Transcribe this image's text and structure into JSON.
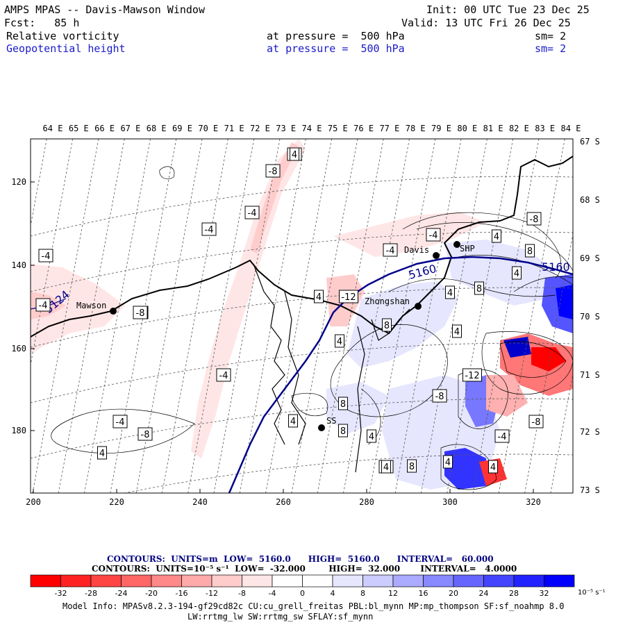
{
  "header": {
    "title": "AMPS MPAS -- Davis-Mawson Window",
    "init": "Init: 00 UTC Tue 23 Dec 25",
    "fcst": "Fcst:   85 h",
    "valid": "Valid: 13 UTC Fri 26 Dec 25",
    "field1": {
      "name": "Relative vorticity",
      "level": "at pressure =  500 hPa",
      "sm": "sm= 2"
    },
    "field2": {
      "name": "Geopotential height",
      "level": "at pressure =  500 hPa",
      "sm": "sm= 2"
    }
  },
  "map": {
    "top_lon_labels": [
      "64 E",
      "65 E",
      "66 E",
      "67 E",
      "68 E",
      "69 E",
      "70 E",
      "71 E",
      "72 E",
      "73 E",
      "74 E",
      "75 E",
      "76 E",
      "77 E",
      "78 E",
      "79 E",
      "80 E",
      "81 E",
      "82 E",
      "83 E",
      "84 E"
    ],
    "right_lat_labels": [
      "67 S",
      "68 S",
      "69 S",
      "70 S",
      "71 S",
      "72 S",
      "73 S"
    ],
    "left_y_ticks": [
      "120",
      "140",
      "160",
      "180"
    ],
    "bottom_x_ticks": [
      "200",
      "220",
      "240",
      "260",
      "280",
      "300",
      "320"
    ],
    "stations": [
      {
        "name": "Mawson"
      },
      {
        "name": "Davis"
      },
      {
        "name": "SHP"
      },
      {
        "name": "Zhongshan"
      },
      {
        "name": "SS"
      }
    ],
    "height_labels": [
      "5124",
      "5160",
      "5160"
    ],
    "contour_labels": [
      "-4",
      "-8",
      "-4",
      "-4",
      "-4",
      "-4",
      "-4",
      "-8",
      "-4",
      "-4",
      "4",
      "-12",
      "4",
      "4",
      "8",
      "4",
      "4",
      "8",
      "8",
      "4",
      "8",
      "4",
      "-8",
      "4",
      "-4",
      "-4",
      "-8",
      "4",
      "4",
      "8",
      "4",
      "-4",
      "8",
      "4",
      "4",
      "-4",
      "-8",
      "-12",
      "4",
      "8",
      "-8",
      "-4",
      "-4",
      "4"
    ]
  },
  "contours_info": {
    "line1": "CONTOURS:  UNITS=m  LOW=  5160.0      HIGH=  5160.0      INTERVAL=   60.000",
    "line2": "CONTOURS:  UNITS=10⁻⁵ s⁻¹  LOW=  -32.000        HIGH=  32.000       INTERVAL=   4.0000"
  },
  "colorbar": {
    "ticks": [
      "-32",
      "-28",
      "-24",
      "-20",
      "-16",
      "-12",
      "-8",
      "-4",
      "0",
      "4",
      "8",
      "12",
      "16",
      "20",
      "24",
      "28",
      "32"
    ],
    "unit": "10⁻⁵ s⁻¹",
    "colors": [
      "#ff0000",
      "#ff3333",
      "#ff5555",
      "#ff7777",
      "#ff9999",
      "#ffb0b0",
      "#ffcccc",
      "#ffe6e6",
      "#ffffff",
      "#ffffff",
      "#e6e6ff",
      "#ccccff",
      "#b0b0ff",
      "#9999ff",
      "#7777ff",
      "#5555ff",
      "#0000ff"
    ]
  },
  "footer": {
    "line1": "Model Info: MPASv8.2.3-194-gf29cd82c CU:cu_grell_freitas PBL:bl_mynn MP:mp_thompson SF:sf_noahmp 8.0",
    "line2": "LW:rrtmg_lw SW:rrtmg_sw SFLAY:sf_mynn"
  }
}
